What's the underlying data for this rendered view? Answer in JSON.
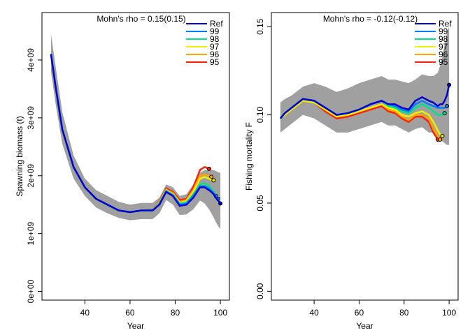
{
  "chart_data": [
    {
      "type": "line",
      "title": "Mohn's rho = 0.15(0.15)",
      "xlabel": "Year",
      "ylabel": "Spawning biomass (t)",
      "x": [
        25,
        27,
        30,
        35,
        40,
        45,
        50,
        55,
        60,
        65,
        70,
        73,
        76,
        79,
        82,
        85,
        88,
        91,
        93,
        95,
        96,
        97,
        98,
        99,
        100
      ],
      "xlim": [
        21,
        104
      ],
      "xticks": [
        40,
        60,
        80,
        100
      ],
      "ylim": [
        -150000000.0,
        4820000000.0
      ],
      "yticks": [
        {
          "value": 0,
          "label": "0e+00"
        },
        {
          "value": 1000000000.0,
          "label": "1e+09"
        },
        {
          "value": 2000000000.0,
          "label": "2e+09"
        },
        {
          "value": 3000000000.0,
          "label": "3e+09"
        },
        {
          "value": 4000000000.0,
          "label": "4e+09"
        }
      ],
      "band": {
        "color": "#a0a0a0",
        "upper": [
          4450000000.0,
          3900000000.0,
          3100000000.0,
          2350000000.0,
          1950000000.0,
          1750000000.0,
          1650000000.0,
          1550000000.0,
          1500000000.0,
          1530000000.0,
          1530000000.0,
          1620000000.0,
          1850000000.0,
          1800000000.0,
          1650000000.0,
          1680000000.0,
          1850000000.0,
          2050000000.0,
          2100000000.0,
          2100000000.0,
          2100000000.0,
          2100000000.0,
          2080000000.0,
          2060000000.0,
          2050000000.0
        ],
        "lower": [
          3800000000.0,
          3250000000.0,
          2550000000.0,
          1950000000.0,
          1650000000.0,
          1450000000.0,
          1350000000.0,
          1270000000.0,
          1230000000.0,
          1250000000.0,
          1250000000.0,
          1350000000.0,
          1580000000.0,
          1500000000.0,
          1320000000.0,
          1330000000.0,
          1420000000.0,
          1570000000.0,
          1520000000.0,
          1420000000.0,
          1350000000.0,
          1280000000.0,
          1200000000.0,
          1130000000.0,
          1080000000.0
        ]
      },
      "series": [
        {
          "name": "Ref",
          "color": "#0000cc",
          "values": [
            4100000000.0,
            3550000000.0,
            2800000000.0,
            2150000000.0,
            1800000000.0,
            1600000000.0,
            1500000000.0,
            1400000000.0,
            1370000000.0,
            1400000000.0,
            1400000000.0,
            1500000000.0,
            1720000000.0,
            1650000000.0,
            1480000000.0,
            1500000000.0,
            1620000000.0,
            1800000000.0,
            1800000000.0,
            1750000000.0,
            1720000000.0,
            1680000000.0,
            1620000000.0,
            1570000000.0,
            1520000000.0
          ]
        },
        {
          "name": "99",
          "color": "#0080ff",
          "values": [
            4100000000.0,
            3550000000.0,
            2800000000.0,
            2150000000.0,
            1800000000.0,
            1600000000.0,
            1500000000.0,
            1400000000.0,
            1370000000.0,
            1400000000.0,
            1400000000.0,
            1510000000.0,
            1730000000.0,
            1660000000.0,
            1500000000.0,
            1520000000.0,
            1650000000.0,
            1820000000.0,
            1820000000.0,
            1780000000.0,
            1740000000.0,
            1700000000.0,
            1650000000.0,
            1600000000.0,
            null
          ]
        },
        {
          "name": "98",
          "color": "#00e08a",
          "values": [
            4100000000.0,
            3550000000.0,
            2800000000.0,
            2150000000.0,
            1800000000.0,
            1600000000.0,
            1500000000.0,
            1400000000.0,
            1370000000.0,
            1400000000.0,
            1400000000.0,
            1520000000.0,
            1740000000.0,
            1670000000.0,
            1520000000.0,
            1540000000.0,
            1680000000.0,
            1850000000.0,
            1870000000.0,
            1820000000.0,
            1770000000.0,
            1720000000.0,
            1650000000.0,
            null,
            null
          ]
        },
        {
          "name": "97",
          "color": "#f0f000",
          "values": [
            4100000000.0,
            3550000000.0,
            2800000000.0,
            2150000000.0,
            1800000000.0,
            1600000000.0,
            1500000000.0,
            1400000000.0,
            1370000000.0,
            1400000000.0,
            1400000000.0,
            1530000000.0,
            1750000000.0,
            1680000000.0,
            1530000000.0,
            1560000000.0,
            1720000000.0,
            1950000000.0,
            1980000000.0,
            1950000000.0,
            1930000000.0,
            1920000000.0,
            null,
            null,
            null
          ]
        },
        {
          "name": "96",
          "color": "#ffa500",
          "values": [
            4100000000.0,
            3550000000.0,
            2800000000.0,
            2150000000.0,
            1800000000.0,
            1600000000.0,
            1500000000.0,
            1400000000.0,
            1370000000.0,
            1400000000.0,
            1400000000.0,
            1540000000.0,
            1760000000.0,
            1700000000.0,
            1550000000.0,
            1580000000.0,
            1750000000.0,
            2000000000.0,
            2020000000.0,
            2000000000.0,
            1980000000.0,
            null,
            null,
            null,
            null
          ]
        },
        {
          "name": "95",
          "color": "#ff2000",
          "values": [
            4100000000.0,
            3550000000.0,
            2800000000.0,
            2150000000.0,
            1800000000.0,
            1600000000.0,
            1500000000.0,
            1400000000.0,
            1370000000.0,
            1400000000.0,
            1400000000.0,
            1550000000.0,
            1780000000.0,
            1720000000.0,
            1580000000.0,
            1600000000.0,
            1800000000.0,
            2100000000.0,
            2150000000.0,
            2120000000.0,
            null,
            null,
            null,
            null,
            null
          ]
        }
      ]
    },
    {
      "type": "line",
      "title": "Mohn's rho = -0.12(-0.12)",
      "xlabel": "Year",
      "ylabel": "Fishing mortality F",
      "x": [
        25,
        27,
        30,
        35,
        40,
        45,
        50,
        55,
        60,
        65,
        70,
        73,
        76,
        79,
        82,
        85,
        88,
        91,
        93,
        95,
        96,
        97,
        98,
        99,
        100
      ],
      "xlim": [
        21,
        104
      ],
      "xticks": [
        40,
        60,
        80,
        100
      ],
      "ylim": [
        -0.005,
        0.158
      ],
      "yticks": [
        {
          "value": 0,
          "label": "0.00"
        },
        0.05,
        {
          "value": 0.1,
          "label": "0.10"
        },
        0.15
      ],
      "band": {
        "color": "#a0a0a0",
        "upper": [
          0.107,
          0.109,
          0.111,
          0.116,
          0.118,
          0.116,
          0.113,
          0.115,
          0.118,
          0.12,
          0.122,
          0.12,
          0.12,
          0.119,
          0.118,
          0.12,
          0.123,
          0.122,
          0.122,
          0.124,
          0.128,
          0.133,
          0.14,
          0.146,
          0.15
        ],
        "lower": [
          0.09,
          0.092,
          0.095,
          0.1,
          0.098,
          0.094,
          0.09,
          0.09,
          0.092,
          0.094,
          0.096,
          0.094,
          0.094,
          0.092,
          0.09,
          0.092,
          0.093,
          0.09,
          0.09,
          0.087,
          0.086,
          0.085,
          0.084,
          0.083,
          0.083
        ]
      },
      "series": [
        {
          "name": "Ref",
          "color": "#0000cc",
          "values": [
            0.098,
            0.101,
            0.104,
            0.109,
            0.108,
            0.104,
            0.1,
            0.101,
            0.103,
            0.106,
            0.108,
            0.106,
            0.106,
            0.104,
            0.103,
            0.108,
            0.11,
            0.108,
            0.107,
            0.105,
            0.106,
            0.106,
            0.108,
            0.111,
            0.117
          ]
        },
        {
          "name": "99",
          "color": "#0080ff",
          "values": [
            0.098,
            0.101,
            0.104,
            0.109,
            0.108,
            0.104,
            0.1,
            0.101,
            0.103,
            0.106,
            0.108,
            0.106,
            0.105,
            0.103,
            0.102,
            0.106,
            0.108,
            0.106,
            0.105,
            0.104,
            0.104,
            0.104,
            0.104,
            0.105,
            null
          ]
        },
        {
          "name": "98",
          "color": "#00e08a",
          "values": [
            0.098,
            0.101,
            0.104,
            0.109,
            0.108,
            0.104,
            0.1,
            0.101,
            0.103,
            0.106,
            0.108,
            0.105,
            0.104,
            0.102,
            0.101,
            0.104,
            0.106,
            0.104,
            0.102,
            0.1,
            0.1,
            0.1,
            0.101,
            null,
            null
          ]
        },
        {
          "name": "97",
          "color": "#f0f000",
          "values": [
            0.098,
            0.1,
            0.103,
            0.108,
            0.107,
            0.103,
            0.099,
            0.1,
            0.102,
            0.104,
            0.106,
            0.104,
            0.103,
            0.1,
            0.099,
            0.101,
            0.102,
            0.1,
            0.096,
            0.091,
            0.089,
            0.088,
            null,
            null,
            null
          ]
        },
        {
          "name": "96",
          "color": "#ffa500",
          "values": [
            0.098,
            0.1,
            0.103,
            0.108,
            0.107,
            0.103,
            0.099,
            0.1,
            0.102,
            0.104,
            0.106,
            0.103,
            0.102,
            0.099,
            0.097,
            0.1,
            0.1,
            0.098,
            0.092,
            0.088,
            0.086,
            null,
            null,
            null,
            null
          ]
        },
        {
          "name": "95",
          "color": "#ff2000",
          "values": [
            0.098,
            0.1,
            0.103,
            0.108,
            0.107,
            0.102,
            0.098,
            0.099,
            0.101,
            0.103,
            0.105,
            0.102,
            0.101,
            0.098,
            0.096,
            0.099,
            0.099,
            0.096,
            0.09,
            0.086,
            null,
            null,
            null,
            null,
            null
          ]
        }
      ]
    }
  ]
}
